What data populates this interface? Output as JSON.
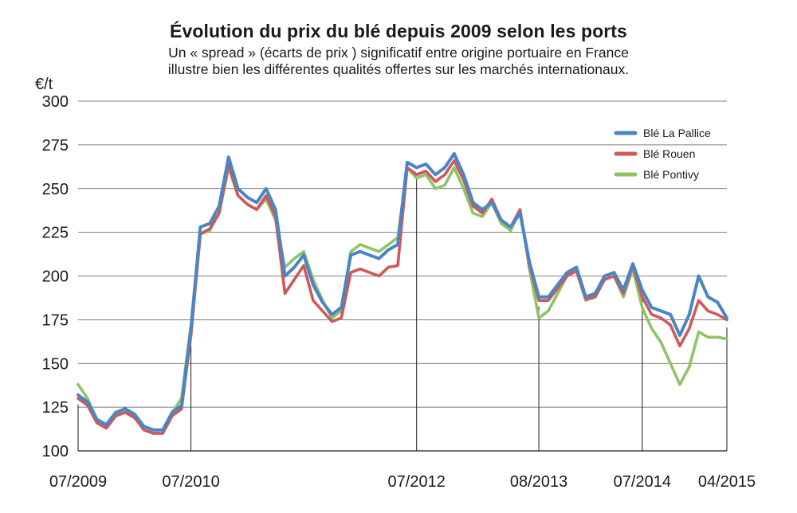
{
  "chart_data": {
    "type": "line",
    "title": "Évolution du prix du blé depuis 2009 selon les ports",
    "subtitle_lines": [
      "Un « spread » (écarts de prix ) significatif entre origine portuaire en France",
      "illustre bien les différentes qualités offertes sur les marchés internationaux."
    ],
    "ylabel": "€/t",
    "xlabel": "",
    "ylim": [
      100,
      300
    ],
    "yticks": [
      100,
      125,
      150,
      175,
      200,
      225,
      250,
      275,
      300
    ],
    "xlim": [
      "2009-07",
      "2015-04"
    ],
    "xticks": [
      "07/2009",
      "07/2010",
      "07/2012",
      "08/2013",
      "07/2014",
      "04/2015"
    ],
    "grid": "horizontal",
    "legend_position": "top-right",
    "colors": {
      "La Pallice": "#4a86c5",
      "Rouen": "#d0585a",
      "Pontivy": "#8fc466"
    },
    "series": [
      {
        "name": "Blé La Pallice",
        "x": [
          "2009-07",
          "2009-08",
          "2009-09",
          "2009-10",
          "2009-11",
          "2009-12",
          "2010-01",
          "2010-02",
          "2010-03",
          "2010-04",
          "2010-05",
          "2010-06",
          "2010-07",
          "2010-08",
          "2010-09",
          "2010-10",
          "2010-11",
          "2010-12",
          "2011-01",
          "2011-02",
          "2011-03",
          "2011-04",
          "2011-05",
          "2011-06",
          "2011-07",
          "2011-08",
          "2011-09",
          "2011-10",
          "2011-11",
          "2011-12",
          "2012-01",
          "2012-02",
          "2012-03",
          "2012-04",
          "2012-05",
          "2012-06",
          "2012-07",
          "2012-08",
          "2012-09",
          "2012-10",
          "2012-11",
          "2012-12",
          "2013-01",
          "2013-02",
          "2013-03",
          "2013-04",
          "2013-05",
          "2013-06",
          "2013-07",
          "2013-08",
          "2013-09",
          "2013-10",
          "2013-11",
          "2013-12",
          "2014-01",
          "2014-02",
          "2014-03",
          "2014-04",
          "2014-05",
          "2014-06",
          "2014-07",
          "2014-08",
          "2014-09",
          "2014-10",
          "2014-11",
          "2014-12",
          "2015-01",
          "2015-02",
          "2015-03",
          "2015-04"
        ],
        "values": [
          132,
          128,
          118,
          115,
          122,
          124,
          121,
          114,
          112,
          112,
          122,
          126,
          170,
          228,
          230,
          240,
          268,
          250,
          245,
          242,
          250,
          238,
          200,
          205,
          212,
          195,
          185,
          178,
          182,
          212,
          214,
          212,
          210,
          215,
          218,
          265,
          262,
          264,
          258,
          262,
          270,
          258,
          242,
          238,
          242,
          232,
          228,
          236,
          208,
          188,
          188,
          195,
          202,
          205,
          188,
          190,
          200,
          202,
          192,
          207,
          192,
          182,
          180,
          178,
          166,
          178,
          200,
          188,
          185,
          176
        ]
      },
      {
        "name": "Blé Rouen",
        "x": [
          "2009-07",
          "2009-08",
          "2009-09",
          "2009-10",
          "2009-11",
          "2009-12",
          "2010-01",
          "2010-02",
          "2010-03",
          "2010-04",
          "2010-05",
          "2010-06",
          "2010-07",
          "2010-08",
          "2010-09",
          "2010-10",
          "2010-11",
          "2010-12",
          "2011-01",
          "2011-02",
          "2011-03",
          "2011-04",
          "2011-05",
          "2011-06",
          "2011-07",
          "2011-08",
          "2011-09",
          "2011-10",
          "2011-11",
          "2011-12",
          "2012-01",
          "2012-02",
          "2012-03",
          "2012-04",
          "2012-05",
          "2012-06",
          "2012-07",
          "2012-08",
          "2012-09",
          "2012-10",
          "2012-11",
          "2012-12",
          "2013-01",
          "2013-02",
          "2013-03",
          "2013-04",
          "2013-05",
          "2013-06",
          "2013-07",
          "2013-08",
          "2013-09",
          "2013-10",
          "2013-11",
          "2013-12",
          "2014-01",
          "2014-02",
          "2014-03",
          "2014-04",
          "2014-05",
          "2014-06",
          "2014-07",
          "2014-08",
          "2014-09",
          "2014-10",
          "2014-11",
          "2014-12",
          "2015-01",
          "2015-02",
          "2015-03",
          "2015-04"
        ],
        "values": [
          130,
          126,
          116,
          113,
          120,
          122,
          119,
          112,
          110,
          110,
          120,
          124,
          166,
          224,
          227,
          236,
          264,
          246,
          241,
          238,
          246,
          234,
          190,
          198,
          206,
          186,
          180,
          174,
          176,
          202,
          204,
          202,
          200,
          205,
          206,
          262,
          258,
          260,
          254,
          258,
          266,
          255,
          240,
          236,
          244,
          232,
          228,
          238,
          206,
          186,
          186,
          193,
          200,
          203,
          187,
          188,
          198,
          200,
          190,
          206,
          188,
          178,
          176,
          172,
          160,
          170,
          186,
          180,
          178,
          175
        ]
      },
      {
        "name": "Blé Pontivy",
        "x": [
          "2009-07",
          "2009-08",
          "2009-09",
          "2009-10",
          "2009-11",
          "2009-12",
          "2010-01",
          "2010-02",
          "2010-03",
          "2010-04",
          "2010-05",
          "2010-06",
          "2010-07",
          "2010-08",
          "2010-09",
          "2010-10",
          "2010-11",
          "2010-12",
          "2011-01",
          "2011-02",
          "2011-03",
          "2011-04",
          "2011-05",
          "2011-06",
          "2011-07",
          "2011-08",
          "2011-09",
          "2011-10",
          "2011-11",
          "2011-12",
          "2012-01",
          "2012-02",
          "2012-03",
          "2012-04",
          "2012-05",
          "2012-06",
          "2012-07",
          "2012-08",
          "2012-09",
          "2012-10",
          "2012-11",
          "2012-12",
          "2013-01",
          "2013-02",
          "2013-03",
          "2013-04",
          "2013-05",
          "2013-06",
          "2013-07",
          "2013-08",
          "2013-09",
          "2013-10",
          "2013-11",
          "2013-12",
          "2014-01",
          "2014-02",
          "2014-03",
          "2014-04",
          "2014-05",
          "2014-06",
          "2014-07",
          "2014-08",
          "2014-09",
          "2014-10",
          "2014-11",
          "2014-12",
          "2015-01",
          "2015-02",
          "2015-03",
          "2015-04"
        ],
        "values": [
          138,
          130,
          118,
          113,
          120,
          122,
          119,
          112,
          110,
          110,
          122,
          130,
          172,
          224,
          226,
          236,
          262,
          246,
          241,
          238,
          244,
          232,
          205,
          210,
          214,
          198,
          186,
          176,
          180,
          214,
          218,
          216,
          214,
          218,
          222,
          262,
          256,
          258,
          250,
          252,
          262,
          250,
          236,
          234,
          242,
          230,
          226,
          238,
          204,
          176,
          180,
          190,
          200,
          203,
          186,
          188,
          198,
          200,
          188,
          204,
          182,
          170,
          162,
          150,
          138,
          148,
          168,
          165,
          165,
          164
        ]
      }
    ]
  }
}
